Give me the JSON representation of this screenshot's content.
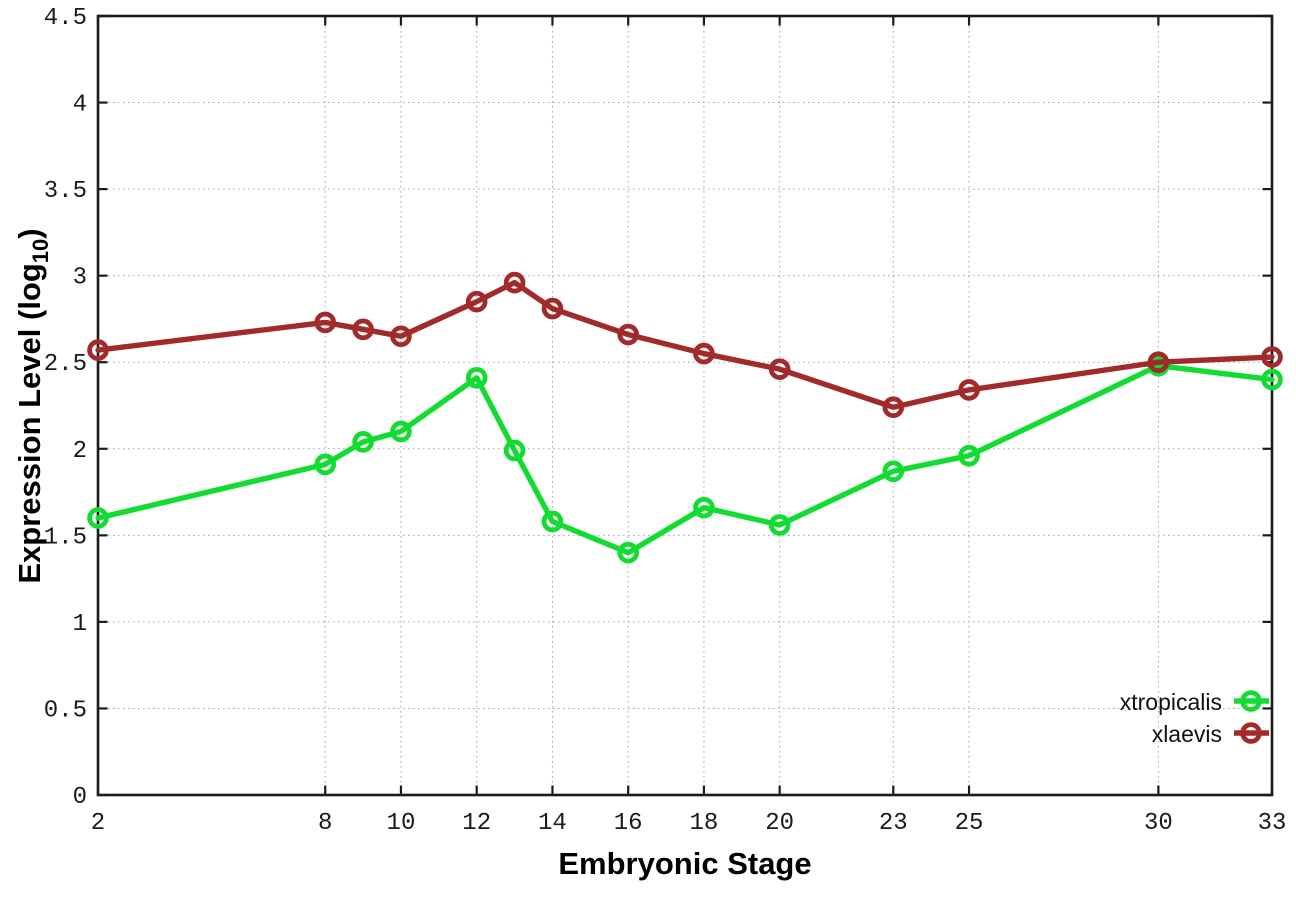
{
  "chart_data": {
    "type": "line",
    "title": "",
    "xlabel": "Embryonic Stage",
    "ylabel": {
      "text": "Expression Level (log10)",
      "main": "Expression Level (log",
      "sub": "10",
      "close": ")"
    },
    "x": [
      2,
      8,
      9,
      10,
      12,
      13,
      14,
      16,
      18,
      20,
      23,
      25,
      30,
      33
    ],
    "series": [
      {
        "name": "xtropicalis",
        "color": "#12dc32",
        "marker": "open-circle",
        "values": [
          1.6,
          1.91,
          2.04,
          2.1,
          2.41,
          1.99,
          1.58,
          1.4,
          1.66,
          1.56,
          1.87,
          1.96,
          2.48,
          2.4
        ]
      },
      {
        "name": "xlaevis",
        "color": "#a32a2a",
        "marker": "open-circle",
        "values": [
          2.57,
          2.73,
          2.69,
          2.65,
          2.85,
          2.96,
          2.81,
          2.66,
          2.55,
          2.46,
          2.24,
          2.34,
          2.5,
          2.53
        ]
      }
    ],
    "xticks": {
      "values": [
        2,
        8,
        10,
        12,
        14,
        16,
        18,
        20,
        23,
        25,
        30,
        33
      ],
      "labels": [
        "2",
        "8",
        "10",
        "12",
        "14",
        "16",
        "18",
        "20",
        "23",
        "25",
        "30",
        "33"
      ]
    },
    "yticks": {
      "values": [
        0,
        0.5,
        1,
        1.5,
        2,
        2.5,
        3,
        3.5,
        4,
        4.5
      ],
      "labels": [
        "0",
        "0.5",
        "1",
        "1.5",
        "2",
        "2.5",
        "3",
        "3.5",
        "4",
        "4.5"
      ]
    },
    "xlim": [
      2,
      33
    ],
    "ylim": [
      0,
      4.5
    ],
    "grid": {
      "on": true,
      "style": "dotted",
      "color": "#a8a8a8"
    },
    "legend": {
      "position": "inside-bottom-right",
      "entries": [
        "xtropicalis",
        "xlaevis"
      ]
    },
    "axis_color": "#1b1b1b",
    "background": "#ffffff"
  }
}
